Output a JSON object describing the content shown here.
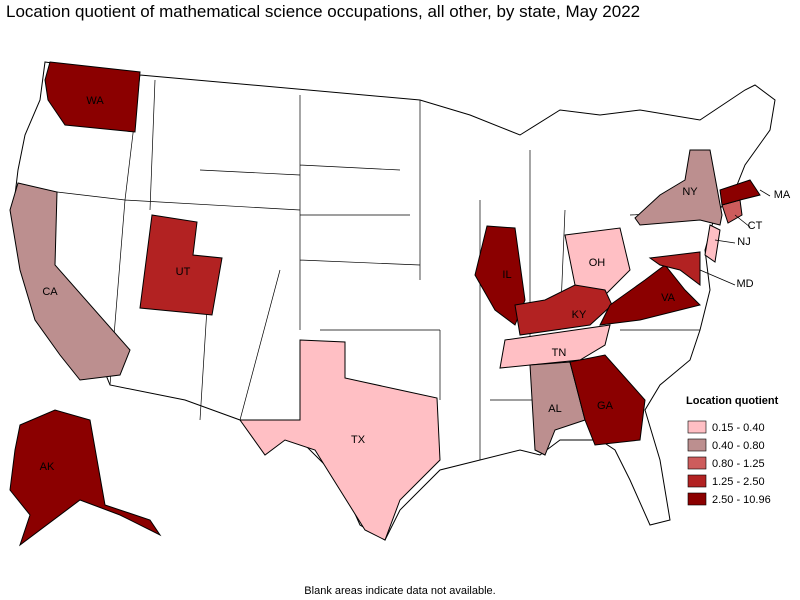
{
  "title": "Location quotient of mathematical science occupations, all other, by state, May 2022",
  "legend": {
    "title": "Location quotient",
    "items": [
      {
        "label": "0.15 - 0.40",
        "color": "#ffbfc4"
      },
      {
        "label": "0.40 - 0.80",
        "color": "#bc8f8f"
      },
      {
        "label": "0.80 - 1.25",
        "color": "#cd5c5c"
      },
      {
        "label": "1.25 - 2.50",
        "color": "#b22222"
      },
      {
        "label": "2.50 - 10.96",
        "color": "#8b0000"
      }
    ]
  },
  "states": [
    {
      "abbr": "WA",
      "class": 4
    },
    {
      "abbr": "CA",
      "class": 1
    },
    {
      "abbr": "UT",
      "class": 3
    },
    {
      "abbr": "TX",
      "class": 0
    },
    {
      "abbr": "IL",
      "class": 4
    },
    {
      "abbr": "OH",
      "class": 0
    },
    {
      "abbr": "KY",
      "class": 3
    },
    {
      "abbr": "TN",
      "class": 0
    },
    {
      "abbr": "AL",
      "class": 1
    },
    {
      "abbr": "GA",
      "class": 4
    },
    {
      "abbr": "VA",
      "class": 4
    },
    {
      "abbr": "MD",
      "class": 3
    },
    {
      "abbr": "NY",
      "class": 1
    },
    {
      "abbr": "NJ",
      "class": 0
    },
    {
      "abbr": "CT",
      "class": 2
    },
    {
      "abbr": "MA",
      "class": 4
    },
    {
      "abbr": "AK",
      "class": 4
    }
  ],
  "note": "Blank areas indicate data not available."
}
